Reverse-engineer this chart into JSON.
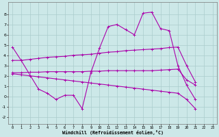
{
  "xlabel": "Windchill (Refroidissement éolien,°C)",
  "line_color": "#aa00aa",
  "bg_color": "#cce8e8",
  "grid_color": "#aacccc",
  "xlim": [
    -0.5,
    23.5
  ],
  "ylim": [
    -2.7,
    9.2
  ],
  "yticks": [
    -2,
    -1,
    0,
    1,
    2,
    3,
    4,
    5,
    6,
    7,
    8
  ],
  "xticks": [
    0,
    1,
    2,
    3,
    4,
    5,
    6,
    7,
    8,
    9,
    10,
    11,
    12,
    13,
    14,
    15,
    16,
    17,
    18,
    19,
    20,
    21,
    22,
    23
  ],
  "main_x": [
    0,
    1,
    3,
    4,
    5,
    6,
    7,
    8,
    9,
    10,
    11,
    12,
    13,
    14,
    15,
    16,
    17,
    18,
    19,
    20,
    21
  ],
  "main_y": [
    4.8,
    3.5,
    0.7,
    0.3,
    -0.3,
    0.1,
    0.1,
    -1.2,
    2.3,
    4.7,
    6.8,
    7.0,
    6.5,
    6.0,
    8.1,
    8.2,
    6.6,
    6.4,
    3.0,
    1.1,
    -0.3
  ],
  "upper_x": [
    0,
    1,
    2,
    3,
    4,
    5,
    6,
    7,
    8,
    9,
    10,
    11,
    12,
    13,
    14,
    15,
    16,
    17,
    18,
    19,
    20,
    21
  ],
  "upper_y": [
    3.5,
    3.5,
    3.6,
    3.7,
    3.8,
    3.85,
    3.9,
    4.0,
    4.05,
    4.1,
    4.2,
    4.3,
    4.35,
    4.45,
    4.5,
    4.55,
    4.6,
    4.65,
    4.75,
    4.8,
    3.0,
    1.4
  ],
  "mid_x": [
    0,
    1,
    2,
    3,
    4,
    5,
    6,
    7,
    8,
    9,
    10,
    11,
    12,
    13,
    14,
    15,
    16,
    17,
    18,
    19,
    20,
    21
  ],
  "mid_y": [
    2.3,
    2.3,
    2.35,
    2.35,
    2.4,
    2.4,
    2.4,
    2.4,
    2.4,
    2.45,
    2.45,
    2.5,
    2.5,
    2.5,
    2.5,
    2.5,
    2.5,
    2.55,
    2.6,
    2.65,
    1.6,
    1.1
  ],
  "bot_x": [
    0,
    1,
    2,
    3,
    4,
    5,
    6,
    7,
    8,
    9,
    10,
    11,
    12,
    13,
    14,
    15,
    16,
    17,
    18,
    19,
    20,
    21
  ],
  "bot_y": [
    2.2,
    2.1,
    2.0,
    1.9,
    1.8,
    1.7,
    1.6,
    1.5,
    1.4,
    1.3,
    1.2,
    1.1,
    1.0,
    0.9,
    0.8,
    0.7,
    0.6,
    0.5,
    0.4,
    0.3,
    -0.3,
    -1.2
  ]
}
